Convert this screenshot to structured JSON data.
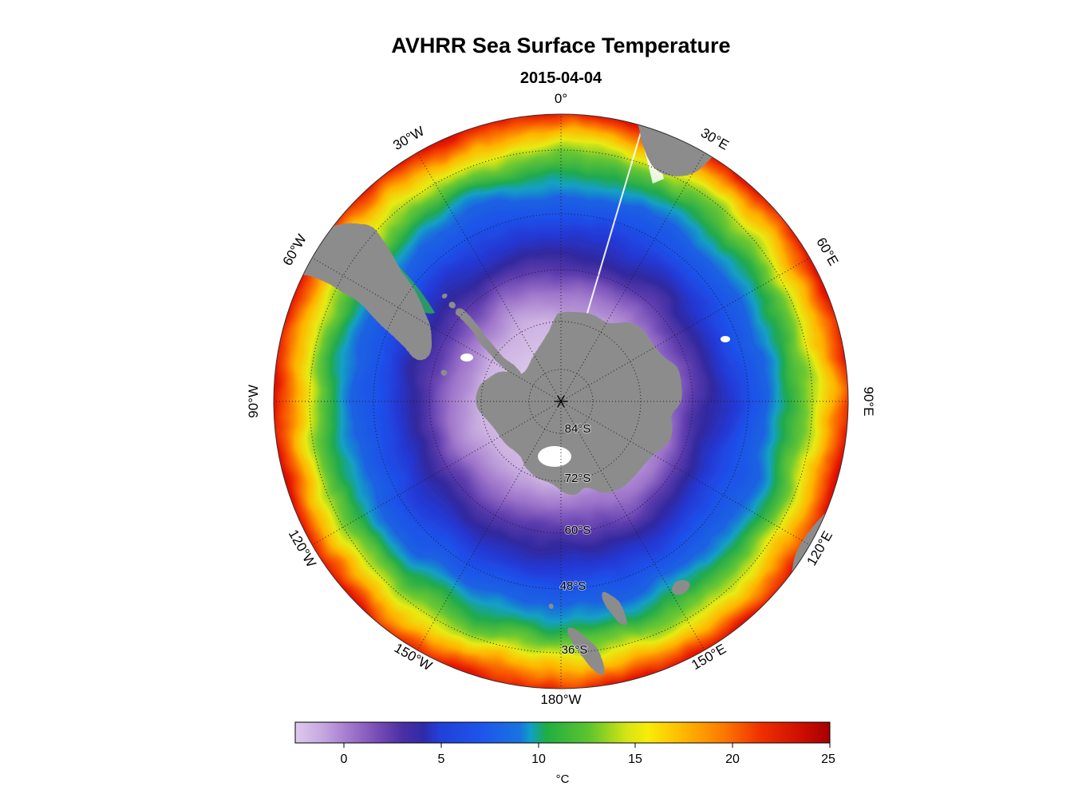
{
  "header": {
    "title": "AVHRR Sea Surface Temperature",
    "date": "2015-04-04"
  },
  "chart_data": {
    "type": "heatmap",
    "title": "AVHRR Sea Surface Temperature",
    "subtitle": "2015-04-04",
    "projection": "south polar stereographic",
    "longitude_labels": [
      "0°",
      "30°E",
      "60°E",
      "90°E",
      "120°E",
      "150°E",
      "180°W",
      "150°W",
      "120°W",
      "90°W",
      "60°W",
      "30°W"
    ],
    "latitude_labels": [
      "84°S",
      "72°S",
      "60°S",
      "48°S",
      "36°S"
    ],
    "colorbar": {
      "ticks": [
        "0",
        "5",
        "10",
        "15",
        "20",
        "25"
      ],
      "unit": "°C",
      "value_range": [
        -2.5,
        25
      ]
    },
    "land_color": "#8c8c8c",
    "land_regions": [
      "Antarctica",
      "Antarctic Peninsula",
      "South America",
      "Africa southern tip",
      "Australia",
      "Tasmania",
      "New Zealand"
    ],
    "sst_by_latitude": [
      {
        "lat_deg_s": 70,
        "sst_c": -1.5
      },
      {
        "lat_deg_s": 65,
        "sst_c": 0.5
      },
      {
        "lat_deg_s": 60,
        "sst_c": 2
      },
      {
        "lat_deg_s": 55,
        "sst_c": 4
      },
      {
        "lat_deg_s": 50,
        "sst_c": 7
      },
      {
        "lat_deg_s": 45,
        "sst_c": 11
      },
      {
        "lat_deg_s": 40,
        "sst_c": 15
      },
      {
        "lat_deg_s": 35,
        "sst_c": 19
      },
      {
        "lat_deg_s": 30,
        "sst_c": 22
      }
    ],
    "map_gradient": [
      {
        "offset": "0%",
        "color": "#eae4f6"
      },
      {
        "offset": "26%",
        "color": "#cdb2e2"
      },
      {
        "offset": "36%",
        "color": "#9d74ca"
      },
      {
        "offset": "43%",
        "color": "#5e3cae"
      },
      {
        "offset": "49%",
        "color": "#31289e"
      },
      {
        "offset": "55%",
        "color": "#2438d4"
      },
      {
        "offset": "61%",
        "color": "#1e50ea"
      },
      {
        "offset": "68%",
        "color": "#1c62e2"
      },
      {
        "offset": "72%",
        "color": "#13a0c4"
      },
      {
        "offset": "75%",
        "color": "#21aa4c"
      },
      {
        "offset": "80%",
        "color": "#6cc832"
      },
      {
        "offset": "84%",
        "color": "#e9ea12"
      },
      {
        "offset": "88%",
        "color": "#ffb400"
      },
      {
        "offset": "92%",
        "color": "#f75400"
      },
      {
        "offset": "95%",
        "color": "#e31400"
      },
      {
        "offset": "100%",
        "color": "#a80000"
      }
    ],
    "colorbar_gradient": [
      {
        "offset": "0%",
        "color": "#decaee"
      },
      {
        "offset": "5%",
        "color": "#c6a8e0"
      },
      {
        "offset": "9%",
        "color": "#aa82d2"
      },
      {
        "offset": "15%",
        "color": "#7a50b8"
      },
      {
        "offset": "20%",
        "color": "#4c2fa4"
      },
      {
        "offset": "24%",
        "color": "#2f2aaa"
      },
      {
        "offset": "27%",
        "color": "#2140d8"
      },
      {
        "offset": "35%",
        "color": "#1e55ec"
      },
      {
        "offset": "42%",
        "color": "#1973e0"
      },
      {
        "offset": "44%",
        "color": "#0f9fc8"
      },
      {
        "offset": "47%",
        "color": "#1fae42"
      },
      {
        "offset": "55%",
        "color": "#5ec42e"
      },
      {
        "offset": "62%",
        "color": "#d6e414"
      },
      {
        "offset": "66%",
        "color": "#f8ec0a"
      },
      {
        "offset": "73%",
        "color": "#ffb400"
      },
      {
        "offset": "80%",
        "color": "#fc7a00"
      },
      {
        "offset": "87%",
        "color": "#f03000"
      },
      {
        "offset": "95%",
        "color": "#cc0c00"
      },
      {
        "offset": "100%",
        "color": "#a50000"
      }
    ]
  }
}
